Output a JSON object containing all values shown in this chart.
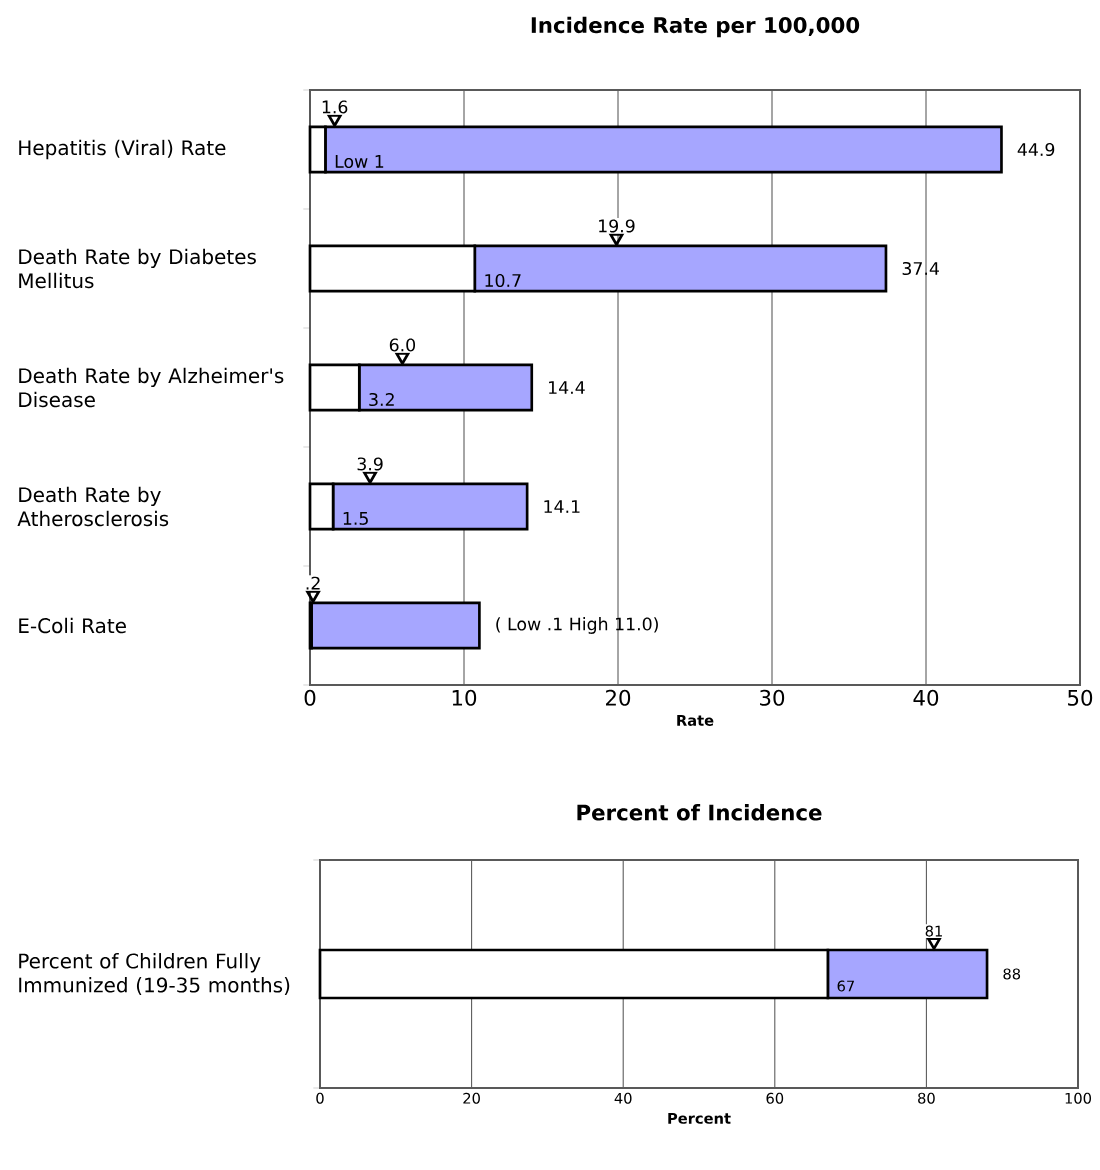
{
  "chart_data": [
    {
      "type": "bar",
      "orientation": "horizontal",
      "stacked": true,
      "title": "Incidence Rate per 100,000",
      "xlabel": "Rate",
      "categories": [
        "Hepatitis (Viral) Rate",
        "Death Rate by Diabetes Mellitus",
        "Death Rate by Alzheimer's Disease",
        "Death Rate by Atherosclerosis",
        "E-Coli Rate"
      ],
      "series": [
        {
          "color": "#ffffff",
          "values": [
            1,
            10.7,
            3.2,
            1.5,
            0.1
          ],
          "value_labels": [
            "Low 1",
            "10.7",
            "3.2",
            "1.5",
            null
          ]
        },
        {
          "color": "#a6a6ff",
          "values": [
            43.9,
            26.7,
            11.2,
            12.6,
            10.9
          ]
        },
        {
          "type": "scatter",
          "color": "#000000",
          "marker": "triangle",
          "values": [
            1.6,
            19.9,
            6.0,
            3.9,
            0.2
          ],
          "value_labels": [
            "1.6",
            "19.9",
            "6.0",
            "3.9",
            ".2"
          ]
        }
      ],
      "xlim": [
        0,
        50
      ],
      "xticks": [
        0,
        10,
        20,
        30,
        40,
        50
      ],
      "grid": "x",
      "annotations": [
        {
          "text": "44.9",
          "x": 44.9,
          "y": "Hepatitis (Viral) Rate"
        },
        {
          "text": "37.4",
          "x": 37.4,
          "y": "Death Rate by Diabetes Mellitus"
        },
        {
          "text": "14.4",
          "x": 14.4,
          "y": "Death Rate by Alzheimer's Disease"
        },
        {
          "text": "14.1",
          "x": 14.1,
          "y": "Death Rate by Atherosclerosis"
        },
        {
          "text": "( Low .1 High 11.0)",
          "x": 11.0,
          "y": "E-Coli Rate"
        }
      ]
    },
    {
      "type": "bar",
      "orientation": "horizontal",
      "stacked": true,
      "title": "Percent of Incidence",
      "xlabel": "Percent",
      "categories": [
        "Percent of Children Fully Immunized (19-35 months)"
      ],
      "series": [
        {
          "color": "#ffffff",
          "values": [
            67
          ],
          "value_labels": [
            "67"
          ]
        },
        {
          "color": "#a6a6ff",
          "values": [
            21
          ]
        },
        {
          "type": "scatter",
          "color": "#000000",
          "marker": "triangle",
          "values": [
            81
          ],
          "value_labels": [
            "81"
          ]
        }
      ],
      "xlim": [
        0,
        100
      ],
      "xticks": [
        0,
        20,
        40,
        60,
        80,
        100
      ],
      "grid": "x",
      "annotations": [
        {
          "text": "88",
          "x": 88,
          "y": "Percent of Children Fully Immunized (19-35 months)"
        }
      ]
    }
  ]
}
